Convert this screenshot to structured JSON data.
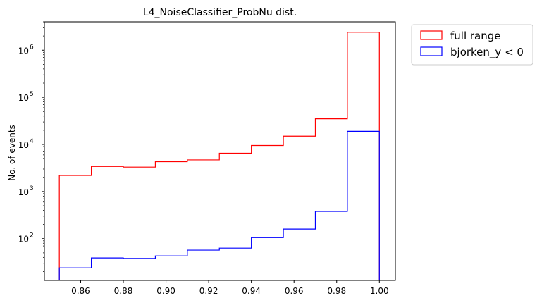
{
  "chart_data": {
    "type": "histogram",
    "title": "L4_NoiseClassifier_ProbNu dist.",
    "xlabel": "",
    "ylabel": "No. of events",
    "yscale": "log",
    "xlim": [
      0.843,
      1.0075
    ],
    "ylim": [
      13,
      4000000
    ],
    "bin_edges": [
      0.85,
      0.865,
      0.88,
      0.895,
      0.91,
      0.925,
      0.94,
      0.955,
      0.97,
      0.985,
      1.0
    ],
    "series": [
      {
        "name": "full range",
        "color": "#ff0000",
        "values": [
          2200,
          3400,
          3300,
          4300,
          4700,
          6500,
          9500,
          15000,
          35000,
          2400000
        ]
      },
      {
        "name": "bjorken_y < 0",
        "color": "#0000ff",
        "values": [
          24,
          39,
          38,
          43,
          57,
          63,
          105,
          160,
          380,
          19000
        ]
      }
    ],
    "xticks": [
      0.86,
      0.88,
      0.9,
      0.92,
      0.94,
      0.96,
      0.98,
      1.0
    ],
    "xtick_labels": [
      "0.86",
      "0.88",
      "0.90",
      "0.92",
      "0.94",
      "0.96",
      "0.98",
      "1.00"
    ],
    "yticks": [
      100,
      1000,
      10000,
      100000,
      1000000
    ],
    "ytick_exponents": [
      "2",
      "3",
      "4",
      "5",
      "6"
    ],
    "ytick_base": "10",
    "legend_position": "outside-top-right"
  }
}
